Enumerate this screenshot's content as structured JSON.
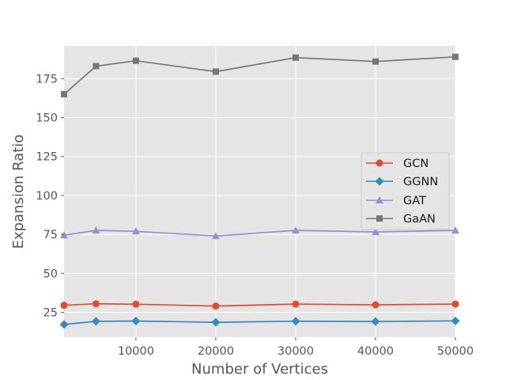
{
  "chart_data": {
    "type": "line",
    "title": "",
    "xlabel": "Number of Vertices",
    "ylabel": "Expansion Ratio",
    "x": [
      1000,
      5000,
      10000,
      20000,
      30000,
      40000,
      50000
    ],
    "xlim": [
      1000,
      50000
    ],
    "ylim": [
      9,
      196
    ],
    "xticks": [
      10000,
      20000,
      30000,
      40000,
      50000
    ],
    "yticks": [
      25,
      50,
      75,
      100,
      125,
      150,
      175
    ],
    "xtick_labels": [
      "10000",
      "20000",
      "30000",
      "40000",
      "50000"
    ],
    "ytick_labels": [
      "25",
      "50",
      "75",
      "100",
      "125",
      "150",
      "175"
    ],
    "grid": true,
    "legend_position": "center-right",
    "series": [
      {
        "name": "GCN",
        "color": "#E24A33",
        "marker": "circle",
        "values": [
          29.5,
          30.5,
          30.2,
          29.0,
          30.3,
          29.8,
          30.3
        ]
      },
      {
        "name": "GGNN",
        "color": "#348ABD",
        "marker": "diamond",
        "values": [
          17.2,
          19.2,
          19.4,
          18.6,
          19.3,
          19.1,
          19.5
        ]
      },
      {
        "name": "GAT",
        "color": "#988ED5",
        "marker": "triangle",
        "values": [
          74.5,
          77.6,
          77.0,
          74.0,
          77.6,
          76.6,
          77.6
        ]
      },
      {
        "name": "GaAN",
        "color": "#777777",
        "marker": "square",
        "values": [
          165.0,
          183.0,
          186.5,
          179.5,
          188.5,
          186.0,
          189.0
        ]
      }
    ]
  }
}
